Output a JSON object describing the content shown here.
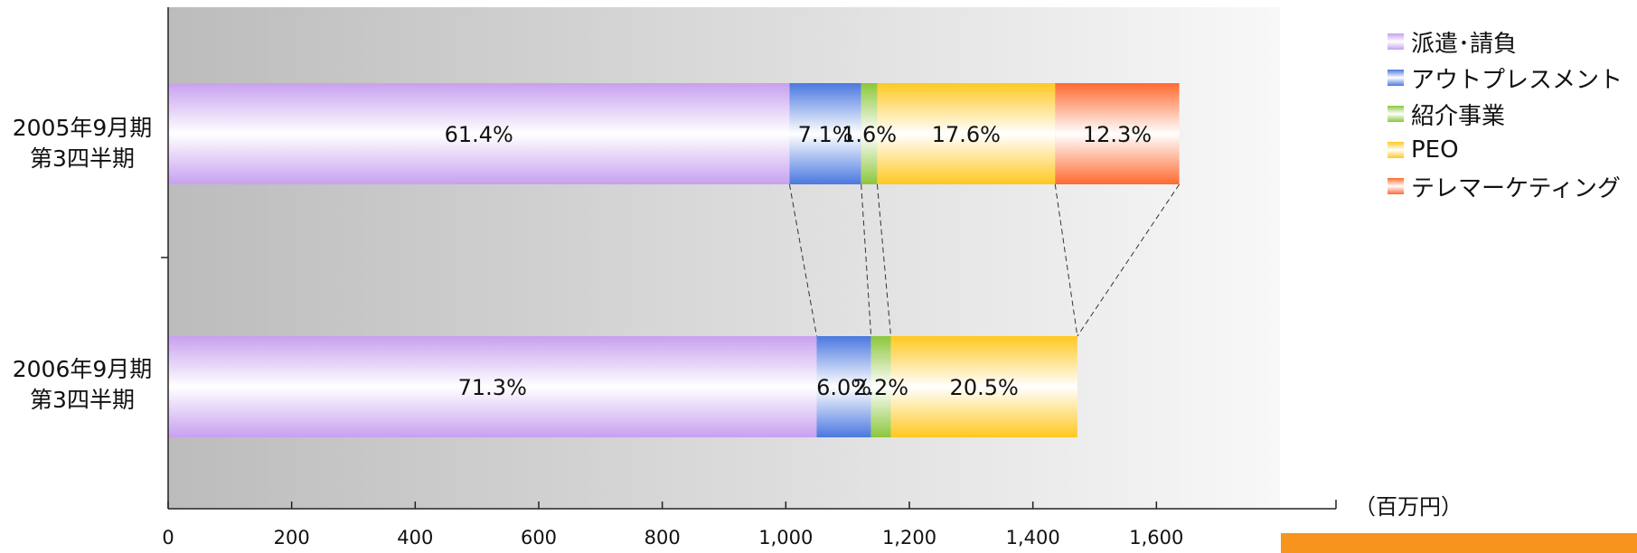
{
  "chart_data": {
    "type": "bar",
    "orientation": "horizontal",
    "stacked": true,
    "categories": [
      {
        "line1": "2005年9月期",
        "line2": "第3四半期"
      },
      {
        "line1": "2006年9月期",
        "line2": "第3四半期"
      }
    ],
    "series": [
      {
        "name": "派遣･請負",
        "values": [
          1006,
          1050
        ],
        "labels": [
          "61.4%",
          "71.3%"
        ],
        "color": "#c8a0f0"
      },
      {
        "name": "アウトプレスメント",
        "values": [
          116,
          88
        ],
        "labels": [
          "7.1%",
          "6.0%"
        ],
        "color": "#4a78e0"
      },
      {
        "name": "紹介事業",
        "values": [
          26,
          32
        ],
        "labels": [
          "1.6%",
          "2.2%"
        ],
        "color": "#8cc63c"
      },
      {
        "name": "PEO",
        "values": [
          288,
          302
        ],
        "labels": [
          "17.6%",
          "20.5%"
        ],
        "color": "#ffc820"
      },
      {
        "name": "テレマーケティング",
        "values": [
          201,
          0
        ],
        "labels": [
          "12.3%",
          ""
        ],
        "color": "#ff6a30"
      }
    ],
    "xlim": [
      0,
      1800
    ],
    "xticks": [
      "0",
      "200",
      "400",
      "600",
      "800",
      "1,000",
      "1,200",
      "1,400",
      "1,600"
    ],
    "xtick_values": [
      0,
      200,
      400,
      600,
      800,
      1000,
      1200,
      1400,
      1600
    ],
    "unit_label": "（百万円）",
    "legend_position": "top-right",
    "connector_lines": true
  },
  "colors": {
    "plot_bg_left": "#bcbcbc",
    "plot_bg_right": "#f8f8f8",
    "accent": "#f7941d"
  }
}
